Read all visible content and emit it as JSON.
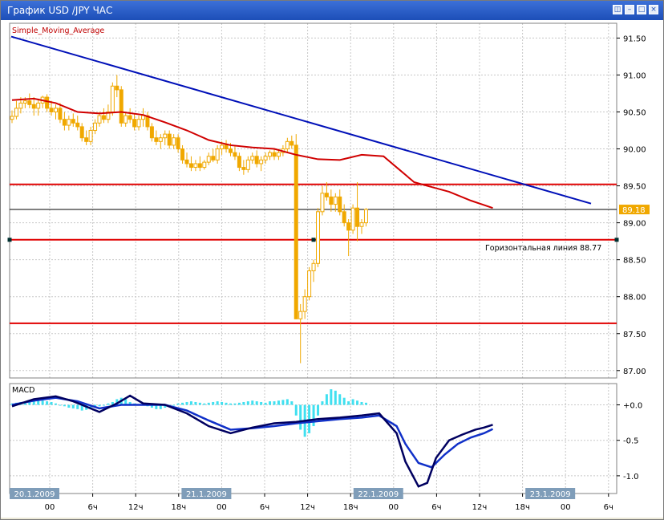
{
  "window": {
    "title": "График USD /JPY  ЧАС",
    "buttons": [
      "restore",
      "minimize",
      "maximize",
      "close"
    ]
  },
  "chart_data": [
    {
      "type": "candlestick",
      "indicator_label": "Simple_Moving_Average",
      "y_ticks": [
        "91.50",
        "91.00",
        "90.50",
        "90.00",
        "89.50",
        "89.00",
        "88.50",
        "88.00",
        "87.50",
        "87.00"
      ],
      "ylim": [
        86.9,
        91.7
      ],
      "current_price": "89.18",
      "horizontal_line_label": "Горизонтальная линия 88.77",
      "horizontal_lines": [
        89.52,
        88.77,
        87.64
      ],
      "bid_line": 89.18,
      "trendline": [
        {
          "bar": 0,
          "price": 91.52
        },
        {
          "bar": 120,
          "price": 89.26
        }
      ],
      "candles": [
        [
          90.4,
          90.52,
          90.35,
          90.44
        ],
        [
          90.44,
          90.65,
          90.4,
          90.55
        ],
        [
          90.55,
          90.7,
          90.48,
          90.62
        ],
        [
          90.62,
          90.7,
          90.55,
          90.65
        ],
        [
          90.65,
          90.75,
          90.55,
          90.6
        ],
        [
          90.6,
          90.7,
          90.45,
          90.55
        ],
        [
          90.55,
          90.68,
          90.45,
          90.62
        ],
        [
          90.62,
          90.72,
          90.55,
          90.7
        ],
        [
          90.7,
          90.74,
          90.5,
          90.55
        ],
        [
          90.55,
          90.65,
          90.45,
          90.5
        ],
        [
          90.5,
          90.6,
          90.4,
          90.55
        ],
        [
          90.55,
          90.62,
          90.35,
          90.4
        ],
        [
          90.4,
          90.5,
          90.25,
          90.32
        ],
        [
          90.32,
          90.45,
          90.25,
          90.4
        ],
        [
          90.4,
          90.48,
          90.3,
          90.35
        ],
        [
          90.35,
          90.45,
          90.25,
          90.3
        ],
        [
          90.3,
          90.35,
          90.1,
          90.15
        ],
        [
          90.15,
          90.25,
          90.05,
          90.1
        ],
        [
          90.1,
          90.3,
          90.05,
          90.25
        ],
        [
          90.25,
          90.4,
          90.2,
          90.35
        ],
        [
          90.35,
          90.5,
          90.3,
          90.45
        ],
        [
          90.45,
          90.55,
          90.35,
          90.4
        ],
        [
          90.4,
          90.6,
          90.35,
          90.5
        ],
        [
          90.5,
          90.9,
          90.45,
          90.85
        ],
        [
          90.85,
          91.0,
          90.7,
          90.8
        ],
        [
          90.8,
          90.85,
          90.3,
          90.35
        ],
        [
          90.35,
          90.5,
          90.3,
          90.45
        ],
        [
          90.45,
          90.55,
          90.35,
          90.4
        ],
        [
          90.4,
          90.48,
          90.25,
          90.3
        ],
        [
          90.3,
          90.45,
          90.25,
          90.4
        ],
        [
          90.4,
          90.55,
          90.3,
          90.45
        ],
        [
          90.45,
          90.5,
          90.25,
          90.3
        ],
        [
          90.3,
          90.35,
          90.1,
          90.15
        ],
        [
          90.15,
          90.25,
          90.05,
          90.1
        ],
        [
          90.1,
          90.2,
          90.0,
          90.15
        ],
        [
          90.15,
          90.25,
          90.05,
          90.2
        ],
        [
          90.2,
          90.25,
          90.0,
          90.05
        ],
        [
          90.05,
          90.2,
          90.0,
          90.15
        ],
        [
          90.15,
          90.2,
          89.95,
          90.0
        ],
        [
          90.0,
          90.05,
          89.8,
          89.85
        ],
        [
          89.85,
          89.95,
          89.75,
          89.8
        ],
        [
          89.8,
          89.9,
          89.7,
          89.75
        ],
        [
          89.75,
          89.85,
          89.7,
          89.8
        ],
        [
          89.8,
          89.9,
          89.7,
          89.75
        ],
        [
          89.75,
          89.85,
          89.72,
          89.82
        ],
        [
          89.82,
          89.95,
          89.78,
          89.9
        ],
        [
          89.9,
          90.0,
          89.82,
          89.85
        ],
        [
          89.85,
          90.05,
          89.8,
          90.0
        ],
        [
          90.0,
          90.1,
          89.92,
          90.05
        ],
        [
          90.05,
          90.12,
          89.95,
          90.0
        ],
        [
          90.0,
          90.08,
          89.9,
          89.95
        ],
        [
          89.95,
          90.05,
          89.85,
          89.9
        ],
        [
          89.9,
          89.95,
          89.7,
          89.75
        ],
        [
          89.75,
          89.85,
          89.65,
          89.72
        ],
        [
          89.72,
          89.9,
          89.68,
          89.85
        ],
        [
          89.85,
          89.95,
          89.8,
          89.9
        ],
        [
          89.9,
          89.98,
          89.75,
          89.8
        ],
        [
          89.8,
          89.9,
          89.7,
          89.85
        ],
        [
          89.85,
          89.95,
          89.8,
          89.9
        ],
        [
          89.9,
          89.98,
          89.85,
          89.95
        ],
        [
          89.95,
          90.0,
          89.85,
          89.9
        ],
        [
          89.9,
          90.0,
          89.85,
          89.95
        ],
        [
          89.95,
          90.05,
          89.9,
          90.0
        ],
        [
          90.0,
          90.15,
          89.95,
          90.1
        ],
        [
          90.1,
          90.18,
          90.0,
          90.05
        ],
        [
          90.05,
          90.2,
          87.7,
          87.7
        ],
        [
          87.7,
          87.9,
          87.1,
          87.8
        ],
        [
          87.8,
          88.1,
          87.7,
          88.0
        ],
        [
          88.0,
          88.4,
          87.95,
          88.35
        ],
        [
          88.35,
          88.5,
          88.2,
          88.45
        ],
        [
          88.45,
          89.2,
          88.4,
          89.15
        ],
        [
          89.15,
          89.5,
          89.1,
          89.4
        ],
        [
          89.4,
          89.55,
          89.3,
          89.35
        ],
        [
          89.35,
          89.45,
          89.15,
          89.25
        ],
        [
          89.25,
          89.4,
          89.15,
          89.35
        ],
        [
          89.35,
          89.45,
          89.1,
          89.15
        ],
        [
          89.15,
          89.25,
          88.95,
          89.0
        ],
        [
          89.0,
          89.05,
          88.55,
          88.9
        ],
        [
          88.9,
          89.25,
          88.85,
          89.2
        ],
        [
          89.2,
          89.55,
          88.75,
          88.95
        ],
        [
          88.95,
          89.05,
          88.85,
          89.0
        ],
        [
          89.0,
          89.2,
          88.95,
          89.18
        ]
      ],
      "sma": [
        [
          0,
          90.66
        ],
        [
          5,
          90.68
        ],
        [
          10,
          90.62
        ],
        [
          15,
          90.5
        ],
        [
          20,
          90.48
        ],
        [
          25,
          90.5
        ],
        [
          30,
          90.46
        ],
        [
          35,
          90.36
        ],
        [
          40,
          90.25
        ],
        [
          45,
          90.12
        ],
        [
          50,
          90.05
        ],
        [
          55,
          90.02
        ],
        [
          60,
          90.0
        ],
        [
          65,
          89.92
        ],
        [
          70,
          89.86
        ],
        [
          75,
          89.85
        ],
        [
          80,
          89.92
        ],
        [
          85,
          89.9
        ],
        [
          88,
          89.75
        ],
        [
          92,
          89.55
        ],
        [
          95,
          89.5
        ],
        [
          100,
          89.42
        ],
        [
          105,
          89.3
        ],
        [
          110,
          89.2
        ]
      ],
      "x_ticks": [
        "00",
        "6ч",
        "12ч",
        "18ч",
        "00",
        "6ч",
        "12ч",
        "18ч",
        "00",
        "6ч",
        "12ч",
        "18ч",
        "00",
        "6ч"
      ],
      "date_labels": [
        "20.1.2009",
        "21.1.2009",
        "22.1.2009",
        "23.1.2009"
      ]
    },
    {
      "type": "line+histogram",
      "indicator_label": "MACD",
      "y_ticks": [
        "+0.0",
        "-0.5",
        "-1.0"
      ],
      "ylim": [
        -1.25,
        0.3
      ],
      "histogram": [
        0.02,
        0.03,
        0.04,
        0.04,
        0.05,
        0.05,
        0.06,
        0.06,
        0.05,
        0.04,
        0.02,
        0.0,
        -0.02,
        -0.04,
        -0.05,
        -0.06,
        -0.08,
        -0.07,
        -0.06,
        -0.04,
        -0.02,
        0.0,
        0.02,
        0.04,
        0.08,
        0.1,
        0.08,
        0.04,
        0.02,
        0.0,
        0.0,
        -0.02,
        -0.04,
        -0.06,
        -0.06,
        -0.04,
        -0.02,
        0.0,
        0.02,
        0.03,
        0.04,
        0.05,
        0.04,
        0.03,
        0.02,
        0.03,
        0.04,
        0.05,
        0.04,
        0.03,
        0.02,
        0.02,
        0.03,
        0.04,
        0.05,
        0.06,
        0.05,
        0.04,
        0.03,
        0.05,
        0.05,
        0.06,
        0.07,
        0.08,
        0.05,
        -0.15,
        -0.35,
        -0.45,
        -0.4,
        -0.3,
        -0.15,
        0.05,
        0.15,
        0.22,
        0.2,
        0.15,
        0.1,
        0.05,
        0.08,
        0.06,
        0.04,
        0.03
      ],
      "macd_line": [
        [
          0,
          -0.02
        ],
        [
          5,
          0.08
        ],
        [
          10,
          0.12
        ],
        [
          14,
          0.05
        ],
        [
          20,
          -0.1
        ],
        [
          24,
          0.02
        ],
        [
          27,
          0.13
        ],
        [
          30,
          0.02
        ],
        [
          35,
          0.0
        ],
        [
          40,
          -0.12
        ],
        [
          45,
          -0.3
        ],
        [
          50,
          -0.4
        ],
        [
          55,
          -0.32
        ],
        [
          60,
          -0.26
        ],
        [
          65,
          -0.24
        ],
        [
          70,
          -0.2
        ],
        [
          75,
          -0.18
        ],
        [
          80,
          -0.15
        ],
        [
          84,
          -0.12
        ],
        [
          88,
          -0.4
        ],
        [
          90,
          -0.8
        ],
        [
          93,
          -1.15
        ],
        [
          95,
          -1.1
        ],
        [
          97,
          -0.75
        ],
        [
          100,
          -0.5
        ],
        [
          103,
          -0.42
        ],
        [
          106,
          -0.35
        ],
        [
          108,
          -0.32
        ],
        [
          110,
          -0.28
        ]
      ],
      "signal_line": [
        [
          0,
          0.0
        ],
        [
          5,
          0.06
        ],
        [
          10,
          0.1
        ],
        [
          15,
          0.05
        ],
        [
          20,
          -0.05
        ],
        [
          25,
          0.0
        ],
        [
          30,
          0.0
        ],
        [
          35,
          0.0
        ],
        [
          40,
          -0.08
        ],
        [
          45,
          -0.22
        ],
        [
          50,
          -0.35
        ],
        [
          55,
          -0.33
        ],
        [
          60,
          -0.3
        ],
        [
          65,
          -0.26
        ],
        [
          70,
          -0.23
        ],
        [
          75,
          -0.2
        ],
        [
          80,
          -0.18
        ],
        [
          84,
          -0.15
        ],
        [
          88,
          -0.3
        ],
        [
          90,
          -0.55
        ],
        [
          93,
          -0.82
        ],
        [
          96,
          -0.88
        ],
        [
          99,
          -0.7
        ],
        [
          102,
          -0.55
        ],
        [
          105,
          -0.46
        ],
        [
          108,
          -0.4
        ],
        [
          110,
          -0.34
        ]
      ]
    }
  ]
}
